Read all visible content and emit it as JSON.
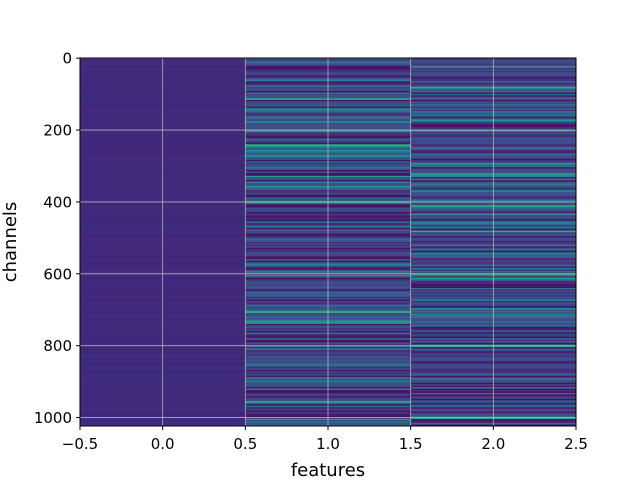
{
  "chart_data": {
    "type": "heatmap",
    "title": "",
    "xlabel": "features",
    "ylabel": "channels",
    "x_ticks": [
      -0.5,
      0.0,
      0.5,
      1.0,
      1.5,
      2.0,
      2.5
    ],
    "x_tick_labels": [
      "−0.5",
      "0.0",
      "0.5",
      "1.0",
      "1.5",
      "2.0",
      "2.5"
    ],
    "y_ticks": [
      0,
      200,
      400,
      600,
      800,
      1000
    ],
    "y_tick_labels": [
      "0",
      "200",
      "400",
      "600",
      "800",
      "1000"
    ],
    "xlim": [
      -0.5,
      2.5
    ],
    "ylim": [
      1023.5,
      -0.5
    ],
    "y_inverted": true,
    "grid": true,
    "colormap": "viridis",
    "n_channels": 1024,
    "features": [
      {
        "x": 0,
        "typical_color": "#3f2a7a",
        "note_value_level": "low"
      },
      {
        "x": 1,
        "typical_color": "#3b4a8b",
        "note_value_level": "mixed"
      },
      {
        "x": 2,
        "typical_color": "#3b4a8b",
        "note_value_level": "mixed"
      }
    ],
    "highlight_rows": [
      {
        "feature": 1,
        "channel": 112
      },
      {
        "feature": 1,
        "channel": 200
      },
      {
        "feature": 1,
        "channel": 240
      },
      {
        "feature": 1,
        "channel": 400
      },
      {
        "feature": 1,
        "channel": 705
      },
      {
        "feature": 1,
        "channel": 955
      },
      {
        "feature": 2,
        "channel": 80
      },
      {
        "feature": 2,
        "channel": 200
      },
      {
        "feature": 2,
        "channel": 410
      },
      {
        "feature": 2,
        "channel": 480
      },
      {
        "feature": 2,
        "channel": 600
      },
      {
        "feature": 2,
        "channel": 800
      },
      {
        "feature": 2,
        "channel": 1000
      }
    ]
  }
}
